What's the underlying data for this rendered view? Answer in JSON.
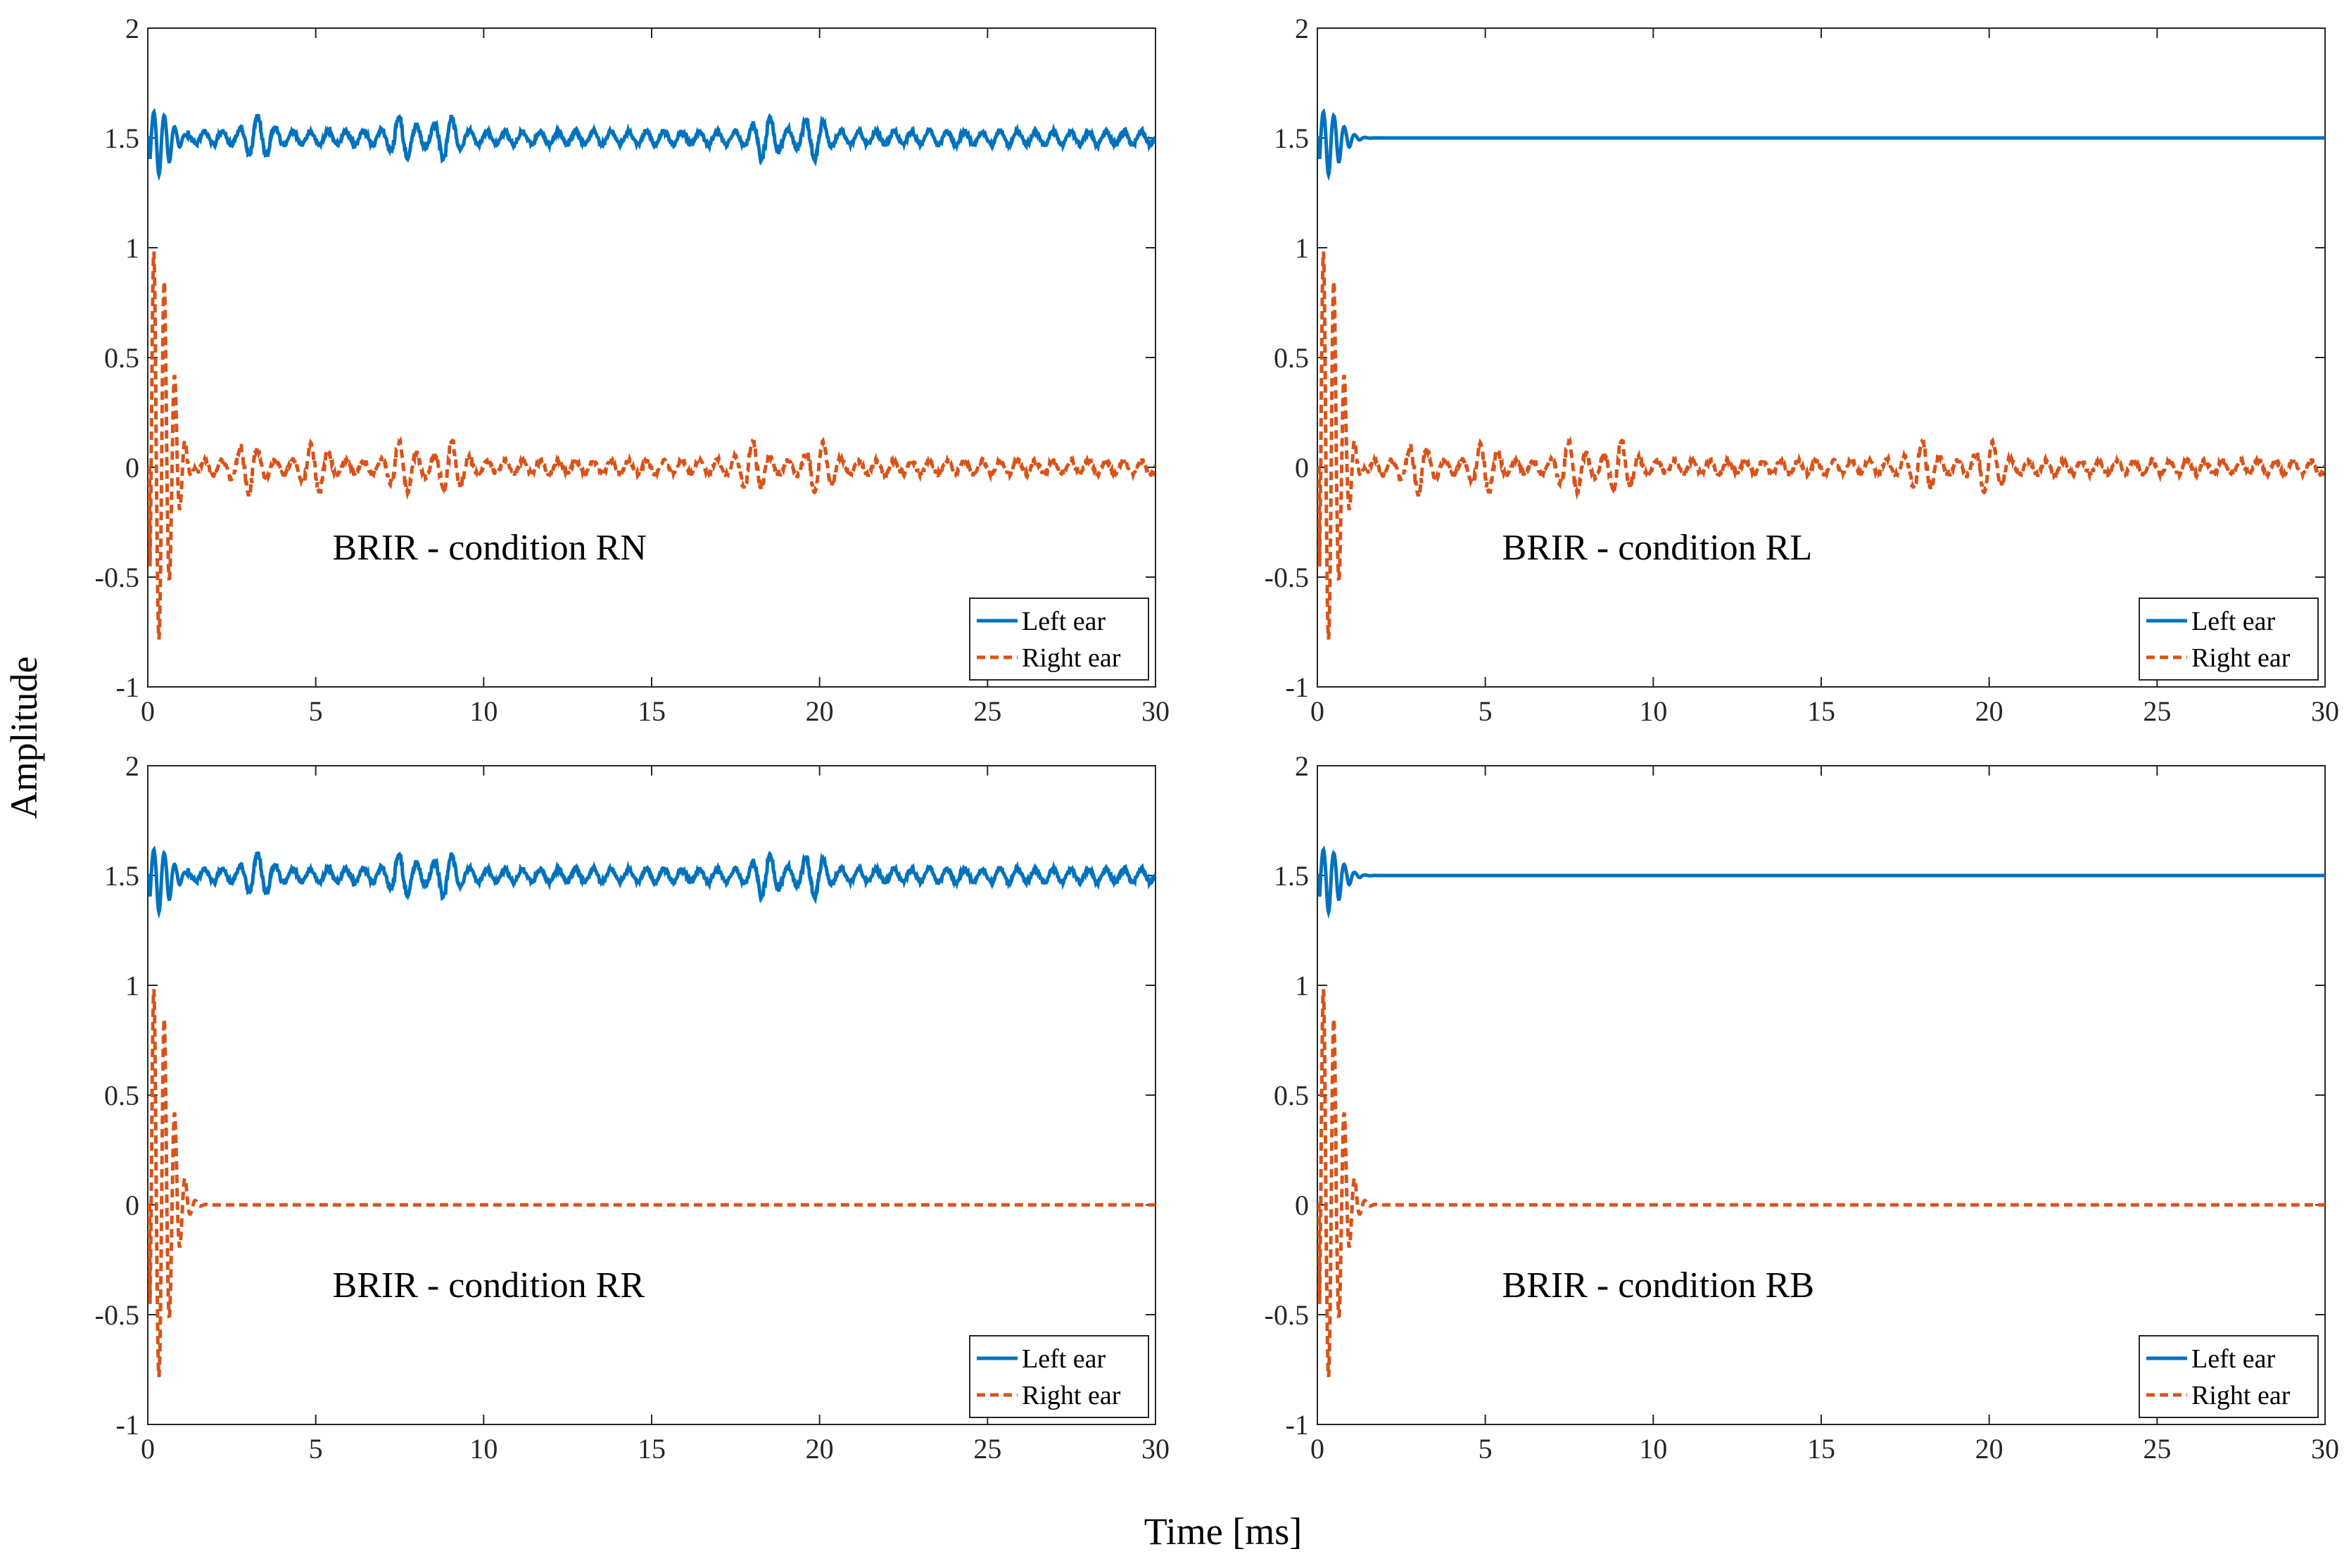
{
  "figure": {
    "ylabel": "Amplitude",
    "xlabel": "Time [ms]",
    "colors": {
      "left": "#0072BD",
      "right": "#D95319",
      "axis": "#262626"
    }
  },
  "chart_data": [
    {
      "type": "line",
      "annotation": "BRIR - condition RN",
      "xlim": [
        0,
        30
      ],
      "ylim": [
        -1,
        2
      ],
      "xticks": [
        "0",
        "5",
        "10",
        "15",
        "20",
        "25",
        "30"
      ],
      "yticks": [
        "-1",
        "-0.5",
        "0",
        "0.5",
        "1",
        "1.5",
        "2"
      ],
      "legend": {
        "position": "bottom-right",
        "entries": [
          "Left ear",
          "Right ear"
        ]
      },
      "series": [
        {
          "name": "Left ear",
          "style": "solid",
          "offset": 1.5,
          "early_peak": 0.12,
          "early_trough": -0.17,
          "reflections": [
            3.3,
            7.6,
            8.9,
            18.4,
            19.8
          ],
          "tail_amplitude": 0.03,
          "tail_end": 30
        },
        {
          "name": "Right ear",
          "style": "dashed",
          "offset": 0,
          "early_peak": 1.0,
          "early_trough": -0.8,
          "reflections": [
            3.0,
            5.0,
            7.6,
            9.0,
            18.0,
            20.0
          ],
          "tail_amplitude": 0.03,
          "tail_end": 30
        }
      ]
    },
    {
      "type": "line",
      "annotation": "BRIR - condition RL",
      "xlim": [
        0,
        30
      ],
      "ylim": [
        -1,
        2
      ],
      "xticks": [
        "0",
        "5",
        "10",
        "15",
        "20",
        "25",
        "30"
      ],
      "yticks": [
        "-1",
        "-0.5",
        "0",
        "0.5",
        "1",
        "1.5",
        "2"
      ],
      "legend": {
        "position": "bottom-right",
        "entries": [
          "Left ear",
          "Right ear"
        ]
      },
      "series": [
        {
          "name": "Left ear",
          "style": "solid",
          "offset": 1.5,
          "early_peak": 0.12,
          "early_trough": -0.17,
          "reflections": [],
          "tail_amplitude": 0,
          "tail_end": 2
        },
        {
          "name": "Right ear",
          "style": "dashed",
          "offset": 0,
          "early_peak": 1.0,
          "early_trough": -0.8,
          "reflections": [
            3.0,
            5.0,
            7.6,
            9.0,
            18.0,
            20.0
          ],
          "tail_amplitude": 0.03,
          "tail_end": 30
        }
      ]
    },
    {
      "type": "line",
      "annotation": "BRIR - condition RR",
      "xlim": [
        0,
        30
      ],
      "ylim": [
        -1,
        2
      ],
      "xticks": [
        "0",
        "5",
        "10",
        "15",
        "20",
        "25",
        "30"
      ],
      "yticks": [
        "-1",
        "-0.5",
        "0",
        "0.5",
        "1",
        "1.5",
        "2"
      ],
      "legend": {
        "position": "bottom-right",
        "entries": [
          "Left ear",
          "Right ear"
        ]
      },
      "series": [
        {
          "name": "Left ear",
          "style": "solid",
          "offset": 1.5,
          "early_peak": 0.12,
          "early_trough": -0.17,
          "reflections": [
            3.3,
            7.6,
            8.9,
            18.4,
            19.8
          ],
          "tail_amplitude": 0.03,
          "tail_end": 30
        },
        {
          "name": "Right ear",
          "style": "dashed",
          "offset": 0,
          "early_peak": 1.0,
          "early_trough": -0.8,
          "reflections": [],
          "tail_amplitude": 0,
          "tail_end": 2
        }
      ]
    },
    {
      "type": "line",
      "annotation": "BRIR - condition RB",
      "xlim": [
        0,
        30
      ],
      "ylim": [
        -1,
        2
      ],
      "xticks": [
        "0",
        "5",
        "10",
        "15",
        "20",
        "25",
        "30"
      ],
      "yticks": [
        "-1",
        "-0.5",
        "0",
        "0.5",
        "1",
        "1.5",
        "2"
      ],
      "legend": {
        "position": "bottom-right",
        "entries": [
          "Left ear",
          "Right ear"
        ]
      },
      "series": [
        {
          "name": "Left ear",
          "style": "solid",
          "offset": 1.5,
          "early_peak": 0.12,
          "early_trough": -0.17,
          "reflections": [],
          "tail_amplitude": 0,
          "tail_end": 2
        },
        {
          "name": "Right ear",
          "style": "dashed",
          "offset": 0,
          "early_peak": 1.0,
          "early_trough": -0.8,
          "reflections": [],
          "tail_amplitude": 0,
          "tail_end": 2
        }
      ]
    }
  ]
}
